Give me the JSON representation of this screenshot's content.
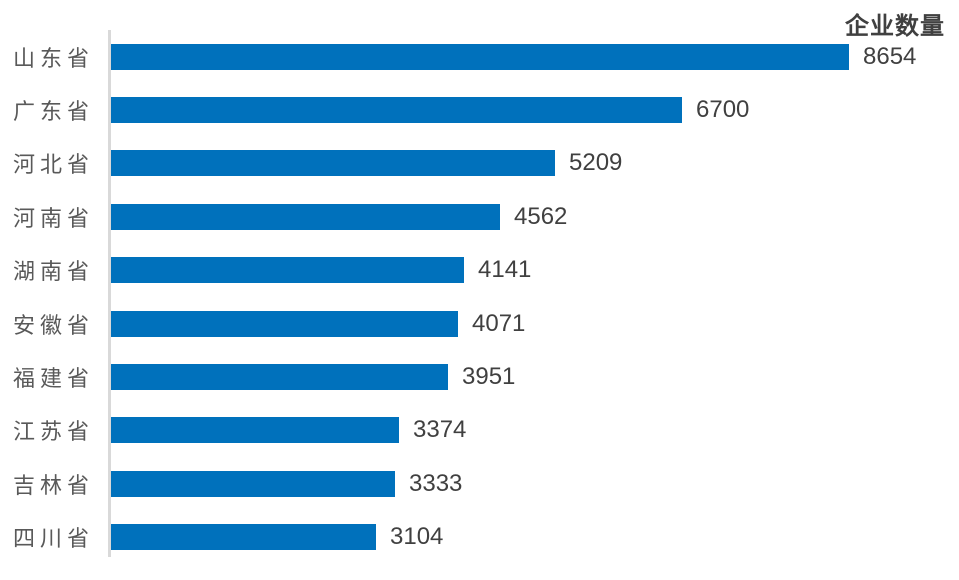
{
  "title": "企业数量",
  "colors": {
    "bar": "#0071bc",
    "title": "#404040",
    "value_label": "#404040",
    "category_label": "#595959",
    "axis_line": "#d9d9d9"
  },
  "chart_data": {
    "type": "bar",
    "orientation": "horizontal",
    "title": "企业数量",
    "xlabel": "",
    "ylabel": "",
    "categories": [
      "山东省",
      "广东省",
      "河北省",
      "河南省",
      "湖南省",
      "安徽省",
      "福建省",
      "江苏省",
      "吉林省",
      "四川省"
    ],
    "values": [
      8654,
      6700,
      5209,
      4562,
      4141,
      4071,
      3951,
      3374,
      3333,
      3104
    ],
    "value_labels_shown": true,
    "xlim": [
      0,
      8654
    ],
    "grid": false,
    "legend": false,
    "sort_order": "descending"
  }
}
